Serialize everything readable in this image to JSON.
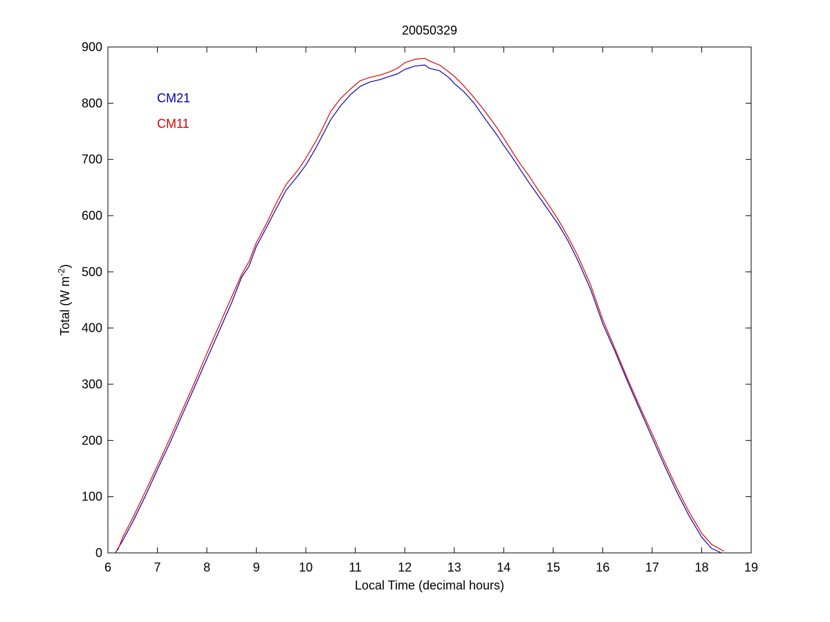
{
  "chart_data": {
    "type": "line",
    "title": "20050329",
    "xlabel": "Local Time (decimal hours)",
    "ylabel_base": "Total (W m",
    "ylabel_sup": "-2",
    "ylabel_close": ")",
    "xlim": [
      6,
      19
    ],
    "ylim": [
      0,
      900
    ],
    "xticks": [
      6,
      7,
      8,
      9,
      10,
      11,
      12,
      13,
      14,
      15,
      16,
      17,
      18,
      19
    ],
    "yticks": [
      0,
      100,
      200,
      300,
      400,
      500,
      600,
      700,
      800,
      900
    ],
    "grid": false,
    "legend_position": "top-left",
    "series": [
      {
        "name": "CM21",
        "color": "#0000aa",
        "x": [
          6.15,
          6.3,
          6.5,
          6.75,
          7.0,
          7.25,
          7.5,
          7.75,
          8.0,
          8.25,
          8.5,
          8.7,
          8.85,
          9.0,
          9.2,
          9.4,
          9.6,
          9.85,
          10.0,
          10.2,
          10.35,
          10.5,
          10.7,
          10.9,
          11.1,
          11.3,
          11.5,
          11.7,
          11.85,
          12.0,
          12.2,
          12.4,
          12.5,
          12.7,
          12.9,
          13.0,
          13.2,
          13.4,
          13.6,
          13.85,
          14.0,
          14.2,
          14.35,
          14.5,
          14.7,
          14.9,
          15.1,
          15.3,
          15.5,
          15.75,
          16.0,
          16.25,
          16.5,
          16.75,
          17.0,
          17.25,
          17.5,
          17.75,
          18.0,
          18.2,
          18.4
        ],
        "y": [
          0,
          22,
          55,
          100,
          148,
          195,
          245,
          295,
          345,
          395,
          445,
          490,
          510,
          545,
          578,
          612,
          645,
          672,
          690,
          720,
          745,
          770,
          795,
          815,
          830,
          838,
          842,
          848,
          852,
          860,
          866,
          868,
          862,
          858,
          845,
          835,
          820,
          800,
          775,
          745,
          725,
          700,
          680,
          660,
          635,
          610,
          585,
          555,
          520,
          470,
          408,
          358,
          305,
          255,
          205,
          155,
          108,
          65,
          28,
          8,
          0
        ]
      },
      {
        "name": "CM11",
        "color": "#dd0000",
        "x": [
          6.2,
          6.3,
          6.5,
          6.75,
          7.0,
          7.25,
          7.5,
          7.75,
          8.0,
          8.25,
          8.5,
          8.7,
          8.85,
          9.0,
          9.2,
          9.4,
          9.6,
          9.85,
          10.0,
          10.2,
          10.35,
          10.5,
          10.7,
          10.9,
          11.1,
          11.3,
          11.5,
          11.7,
          11.85,
          12.0,
          12.2,
          12.4,
          12.5,
          12.7,
          12.9,
          13.0,
          13.2,
          13.4,
          13.6,
          13.85,
          14.0,
          14.2,
          14.35,
          14.5,
          14.7,
          14.9,
          15.1,
          15.3,
          15.5,
          15.75,
          16.0,
          16.25,
          16.5,
          16.75,
          17.0,
          17.25,
          17.5,
          17.75,
          18.0,
          18.2,
          18.45
        ],
        "y": [
          5,
          28,
          62,
          108,
          155,
          203,
          253,
          303,
          355,
          405,
          455,
          495,
          518,
          552,
          585,
          622,
          655,
          682,
          702,
          732,
          757,
          785,
          808,
          825,
          840,
          846,
          850,
          856,
          862,
          872,
          878,
          880,
          875,
          868,
          855,
          848,
          830,
          810,
          788,
          758,
          738,
          710,
          690,
          672,
          645,
          620,
          593,
          562,
          528,
          478,
          415,
          363,
          310,
          260,
          212,
          162,
          115,
          72,
          35,
          15,
          3
        ]
      }
    ]
  }
}
